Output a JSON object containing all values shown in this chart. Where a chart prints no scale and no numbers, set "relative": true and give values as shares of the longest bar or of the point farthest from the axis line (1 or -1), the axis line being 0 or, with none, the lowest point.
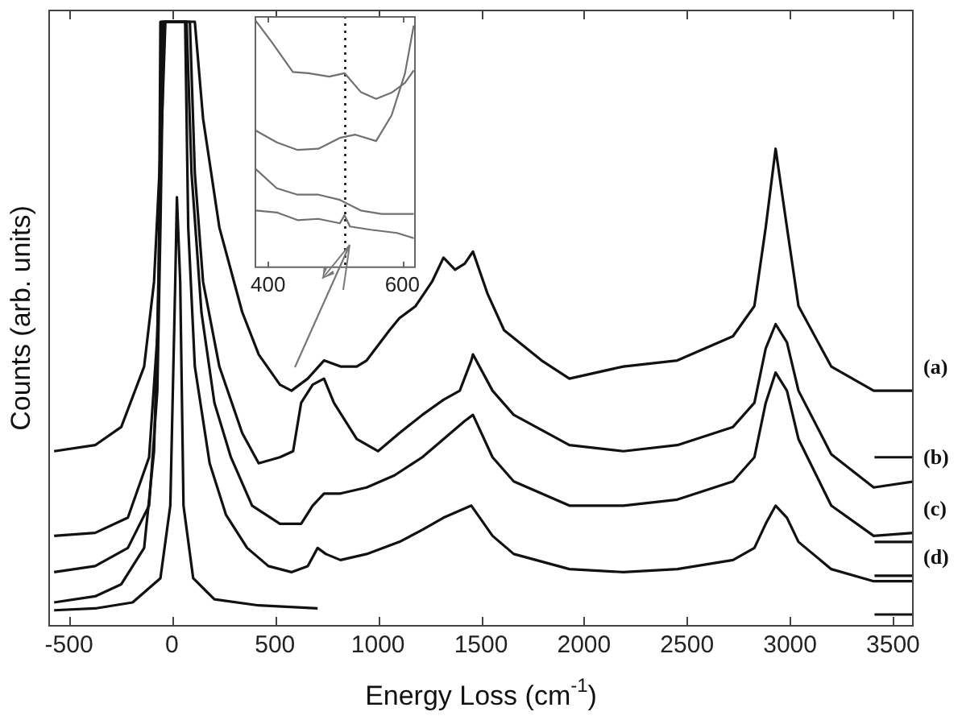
{
  "chart_data": [
    {
      "type": "line",
      "xlabel": "Energy Loss (cm$^{-1}$)",
      "ylabel": "Counts (arb. units)",
      "relative": true,
      "marker": "none",
      "line_style": "solid",
      "xlim": [
        -600,
        3600
      ],
      "xticks": [
        -500,
        0,
        500,
        1000,
        1500,
        2000,
        2500,
        3000,
        3500
      ],
      "series": [
        {
          "name": "(a)",
          "color": "#111111",
          "x": [
            -572,
            -373,
            -246,
            -135,
            -87,
            -48,
            -32,
            111,
            151,
            230,
            341,
            421,
            524,
            580,
            659,
            738,
            818,
            897,
            945,
            1056,
            1104,
            1183,
            1262,
            1318,
            1374,
            1421,
            1461,
            1532,
            1612,
            1794,
            1929,
            2191,
            2453,
            2723,
            2827,
            2882,
            2930,
            2985,
            3041,
            3200,
            3406,
            3600
          ],
          "values": [
            0.29,
            0.3,
            0.33,
            0.43,
            0.57,
            0.84,
            1.0,
            1.0,
            0.84,
            0.66,
            0.52,
            0.45,
            0.4,
            0.39,
            0.41,
            0.44,
            0.43,
            0.43,
            0.44,
            0.49,
            0.51,
            0.53,
            0.57,
            0.61,
            0.59,
            0.6,
            0.62,
            0.55,
            0.49,
            0.44,
            0.41,
            0.43,
            0.44,
            0.48,
            0.53,
            0.66,
            0.79,
            0.66,
            0.53,
            0.43,
            0.39,
            0.39
          ]
        },
        {
          "name": "(b)",
          "color": "#111111",
          "x": [
            -572,
            -373,
            -214,
            -111,
            -71,
            -56,
            -48,
            87,
            111,
            151,
            230,
            341,
            421,
            524,
            588,
            627,
            683,
            738,
            786,
            897,
            1000,
            1104,
            1215,
            1318,
            1397,
            1453,
            1461,
            1556,
            1659,
            1929,
            2191,
            2453,
            2723,
            2827,
            2882,
            2930,
            2985,
            3041,
            3200,
            3406,
            3600
          ],
          "values": [
            0.15,
            0.155,
            0.18,
            0.28,
            0.48,
            0.75,
            1.0,
            1.0,
            0.75,
            0.57,
            0.43,
            0.32,
            0.27,
            0.28,
            0.29,
            0.37,
            0.4,
            0.41,
            0.37,
            0.31,
            0.29,
            0.32,
            0.35,
            0.375,
            0.39,
            0.44,
            0.45,
            0.39,
            0.35,
            0.3,
            0.29,
            0.3,
            0.33,
            0.37,
            0.46,
            0.5,
            0.47,
            0.39,
            0.285,
            0.23,
            0.24
          ]
        },
        {
          "name": "(c)",
          "color": "#111111",
          "x": [
            -572,
            -373,
            -214,
            -111,
            -71,
            -56,
            -40,
            71,
            95,
            143,
            206,
            286,
            389,
            524,
            627,
            683,
            738,
            818,
            945,
            1080,
            1215,
            1318,
            1421,
            1461,
            1556,
            1659,
            1929,
            2191,
            2453,
            2723,
            2827,
            2882,
            2930,
            2985,
            3041,
            3200,
            3406,
            3600
          ],
          "values": [
            0.09,
            0.1,
            0.13,
            0.2,
            0.39,
            0.66,
            1.0,
            1.0,
            0.75,
            0.52,
            0.37,
            0.28,
            0.2,
            0.17,
            0.17,
            0.2,
            0.22,
            0.22,
            0.23,
            0.25,
            0.28,
            0.31,
            0.34,
            0.35,
            0.28,
            0.24,
            0.2,
            0.2,
            0.21,
            0.24,
            0.28,
            0.37,
            0.42,
            0.39,
            0.31,
            0.2,
            0.15,
            0.155
          ]
        },
        {
          "name": "(d)",
          "color": "#111111",
          "x": [
            -572,
            -373,
            -246,
            -135,
            -87,
            -64,
            -56,
            64,
            79,
            111,
            183,
            262,
            365,
            468,
            580,
            659,
            707,
            747,
            818,
            945,
            1104,
            1215,
            1318,
            1453,
            1556,
            1659,
            1929,
            2191,
            2453,
            2723,
            2827,
            2882,
            2930,
            2985,
            3041,
            3200,
            3406,
            3600
          ],
          "values": [
            0.04,
            0.05,
            0.07,
            0.13,
            0.29,
            0.57,
            1.0,
            1.0,
            0.66,
            0.43,
            0.27,
            0.185,
            0.13,
            0.1,
            0.09,
            0.1,
            0.13,
            0.12,
            0.11,
            0.12,
            0.14,
            0.16,
            0.18,
            0.2,
            0.15,
            0.12,
            0.095,
            0.09,
            0.095,
            0.11,
            0.13,
            0.17,
            0.2,
            0.18,
            0.14,
            0.095,
            0.075,
            0.075
          ]
        },
        {
          "color": "#111111",
          "x": [
            -572,
            -373,
            -191,
            -56,
            -8,
            16,
            24,
            40,
            56,
            103,
            206,
            421,
            707
          ],
          "values": [
            0.027,
            0.03,
            0.04,
            0.08,
            0.2,
            0.57,
            0.71,
            0.57,
            0.2,
            0.08,
            0.045,
            0.035,
            0.03
          ]
        },
        {
          "color": "#111111",
          "x": [
            3410,
            3600
          ],
          "values": [
            0.28,
            0.28
          ]
        },
        {
          "color": "#111111",
          "x": [
            3410,
            3600
          ],
          "values": [
            0.14,
            0.14
          ]
        },
        {
          "color": "#111111",
          "x": [
            3410,
            3600
          ],
          "values": [
            0.084,
            0.084
          ]
        },
        {
          "color": "#111111",
          "x": [
            3410,
            3600
          ],
          "values": [
            0.02,
            0.02
          ]
        }
      ]
    },
    {
      "type": "line",
      "relative": true,
      "marker": "none",
      "line_style": "solid",
      "tick_labels": "x",
      "xlim": [
        380,
        620
      ],
      "xticks": [
        400,
        600
      ],
      "ref_lines": [
        {
          "axis": "x",
          "value": 515,
          "line_style": "dotted",
          "color": "#111111"
        }
      ],
      "series": [
        {
          "color": "#707070",
          "x": [
            382,
            405,
            437,
            460,
            491,
            514,
            538,
            561,
            584,
            604,
            617
          ],
          "values": [
            1.0,
            0.917,
            0.794,
            0.789,
            0.775,
            0.789,
            0.713,
            0.685,
            0.71,
            0.75,
            0.8
          ]
        },
        {
          "color": "#707070",
          "x": [
            382,
            413,
            444,
            475,
            507,
            530,
            561,
            584,
            604,
            617
          ],
          "values": [
            0.556,
            0.509,
            0.478,
            0.483,
            0.527,
            0.54,
            0.514,
            0.618,
            0.788,
            0.982
          ]
        },
        {
          "color": "#707070",
          "x": [
            382,
            413,
            444,
            475,
            507,
            538,
            569,
            617
          ],
          "values": [
            0.4,
            0.323,
            0.297,
            0.297,
            0.276,
            0.233,
            0.219,
            0.219
          ]
        },
        {
          "color": "#707070",
          "x": [
            382,
            413,
            444,
            475,
            507,
            514,
            522,
            553,
            592,
            617
          ],
          "values": [
            0.233,
            0.225,
            0.194,
            0.199,
            0.181,
            0.214,
            0.168,
            0.155,
            0.142,
            0.121
          ]
        }
      ]
    }
  ]
}
